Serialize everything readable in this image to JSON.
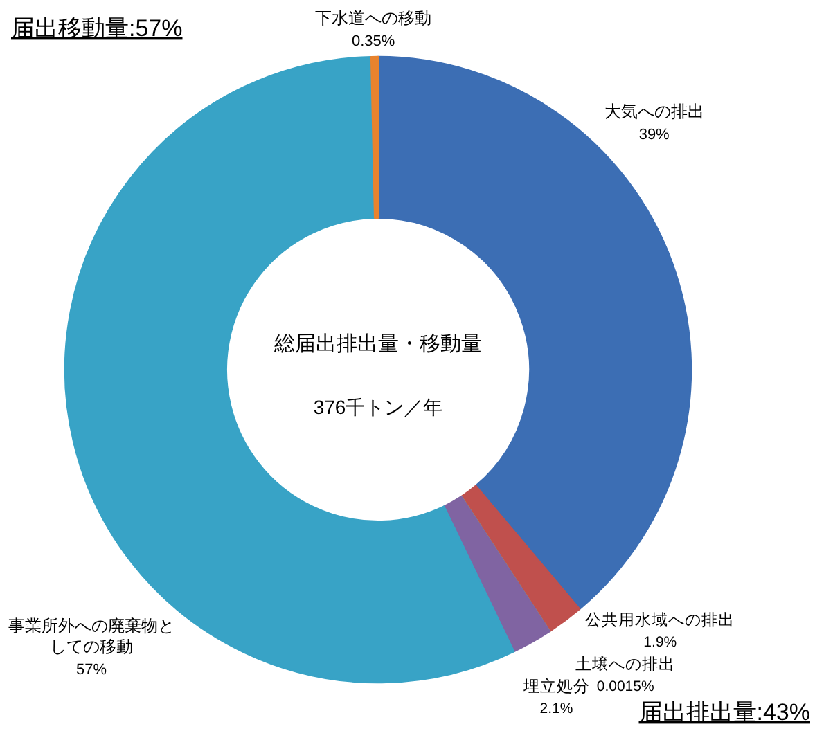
{
  "chart_data": {
    "type": "donut",
    "title": "総届出排出量・移動量",
    "subtitle": "376千トン／年",
    "categories": [
      "大気への排出",
      "公共用水域への排出",
      "土壌への排出",
      "埋立処分",
      "事業所外への廃棄物としての移動",
      "下水道への移動"
    ],
    "values": [
      39,
      1.9,
      0.0015,
      2.1,
      57,
      0.35
    ],
    "colors": [
      "#3c6eb4",
      "#c0504d",
      "#9bbb59",
      "#8064a2",
      "#38a3c6",
      "#e8832e"
    ],
    "value_labels": [
      "39%",
      "1.9%",
      "0.0015%",
      "2.1%",
      "57%",
      "0.35%"
    ],
    "annotations": [
      "届出移動量:57%",
      "届出排出量:43%"
    ]
  }
}
